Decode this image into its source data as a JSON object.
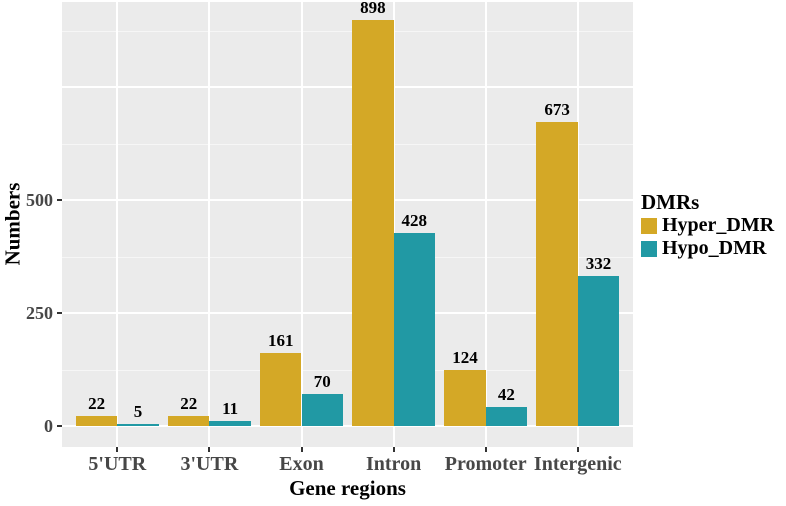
{
  "chart_data": {
    "type": "bar",
    "title": "",
    "xlabel": "Gene regions",
    "ylabel": "Numbers",
    "categories": [
      "5'UTR",
      "3'UTR",
      "Exon",
      "Intron",
      "Promoter",
      "Intergenic"
    ],
    "series": [
      {
        "name": "Hyper_DMR",
        "color": "#D4A826",
        "values": [
          22,
          22,
          161,
          898,
          124,
          673
        ]
      },
      {
        "name": "Hypo_DMR",
        "color": "#2199A4",
        "values": [
          5,
          11,
          70,
          428,
          42,
          332
        ]
      }
    ],
    "bar_value_labels": true,
    "yticks": [
      0,
      250,
      500
    ],
    "grid_major": [
      0,
      250,
      500,
      750
    ],
    "grid_minor": [
      125,
      375,
      625,
      875
    ],
    "ylim": [
      -46,
      937
    ],
    "legend": {
      "title": "DMRs",
      "position": "right"
    },
    "panel_background": "#EBEBEB",
    "grid_color": "#FFFFFF",
    "axis_text_color": "#474747",
    "text_color": "#000000"
  }
}
